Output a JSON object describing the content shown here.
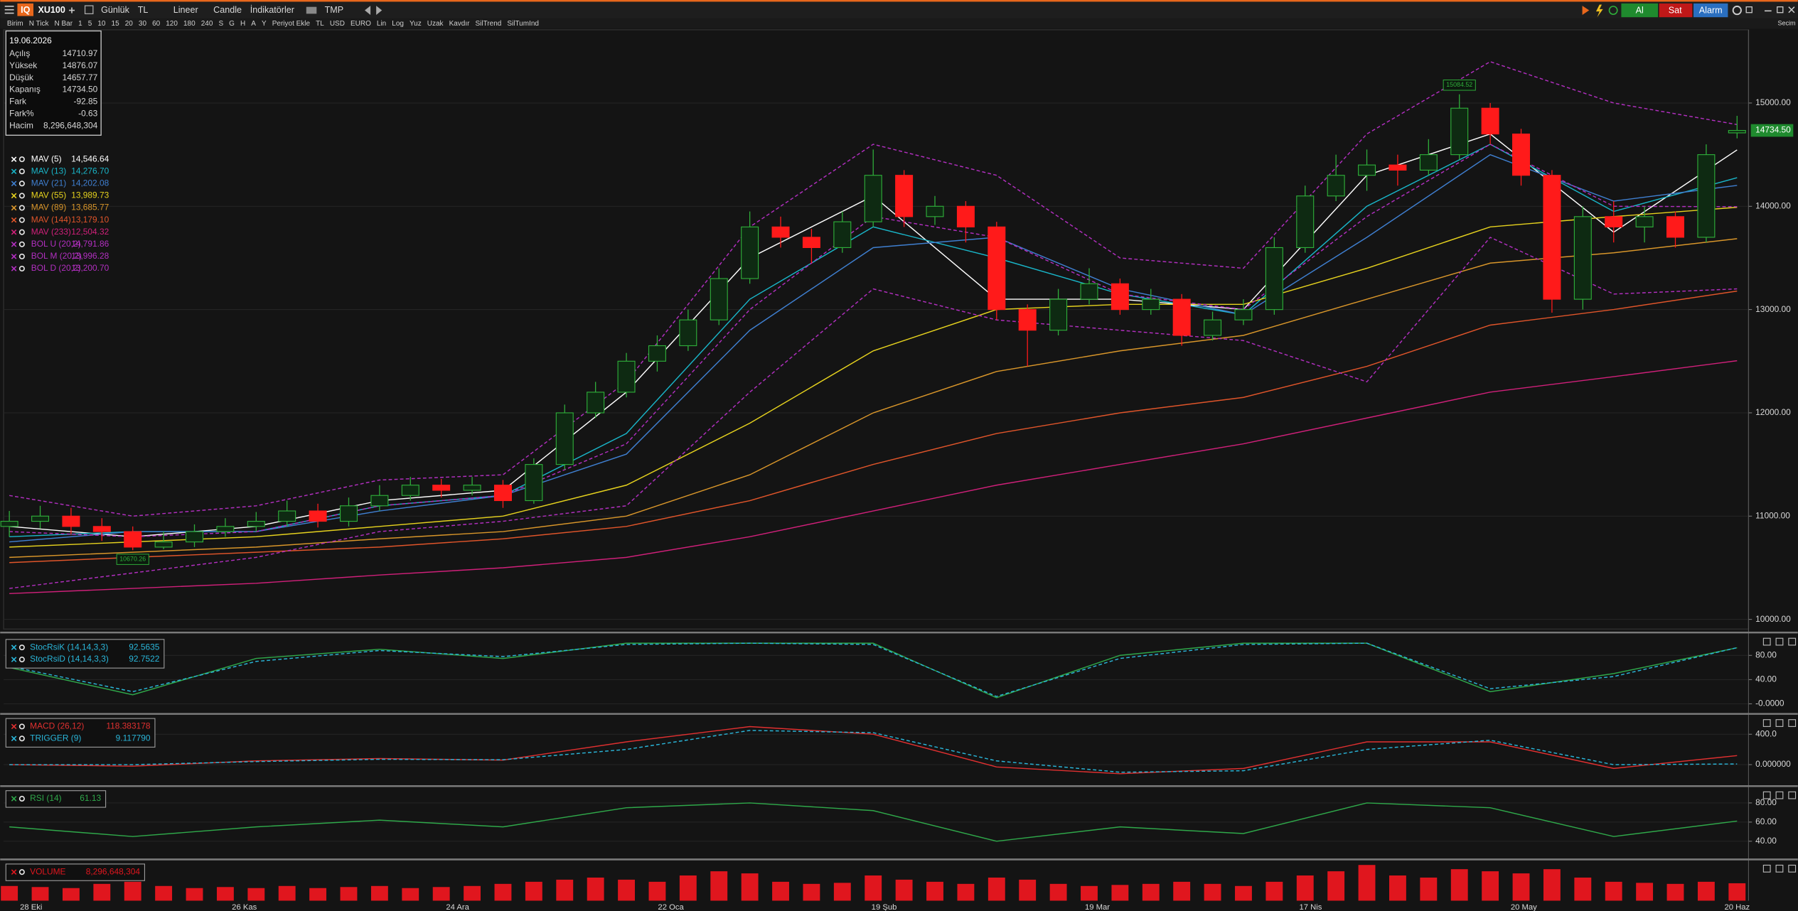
{
  "toolbar": {
    "logo": "IQ",
    "symbol": "XU100",
    "period": "Günlük",
    "currency": "TL",
    "scale": "Lineer",
    "style": "Candle",
    "indicators": "İndikatörler",
    "template": "TMP",
    "buy": "Al",
    "sell": "Sat",
    "alarm": "Alarm",
    "corner": "Secim"
  },
  "subtoolbar": [
    "Birim",
    "N Tick",
    "N Bar",
    "1",
    "5",
    "10",
    "15",
    "20",
    "30",
    "60",
    "120",
    "180",
    "240",
    "S",
    "G",
    "H",
    "A",
    "Y",
    "Periyot Ekle",
    "TL",
    "USD",
    "EURO",
    "Lin",
    "Log",
    "Yuz",
    "Uzak",
    "Kavdır",
    "SilTrend",
    "SilTumInd"
  ],
  "info_box": {
    "date": "19.06.2026",
    "rows": [
      {
        "label": "Açılış",
        "value": "14710.97"
      },
      {
        "label": "Yüksek",
        "value": "14876.07"
      },
      {
        "label": "Düşük",
        "value": "14657.77"
      },
      {
        "label": "Kapanış",
        "value": "14734.50"
      },
      {
        "label": "Fark",
        "value": "-92.85"
      },
      {
        "label": "Fark%",
        "value": "-0.63"
      },
      {
        "label": "Hacim",
        "value": "8,296,648,304"
      }
    ]
  },
  "chart_data": [
    {
      "type": "candlestick",
      "up_color": "#2fae3a",
      "down_color": "#ff1a1a",
      "grid": true,
      "x_labels": [
        "28 Eki",
        "26 Kas",
        "24 Ara",
        "22 Oca",
        "19 Şub",
        "19 Mar",
        "17 Nis",
        "20 May",
        "20 Haz"
      ],
      "open": [
        10900,
        10950,
        11000,
        10900,
        10850,
        10700,
        10750,
        10850,
        10900,
        10950,
        11050,
        10950,
        11100,
        11200,
        11300,
        11250,
        11300,
        11150,
        11500,
        12000,
        12200,
        12500,
        12650,
        12900,
        13300,
        13800,
        13700,
        13600,
        13850,
        14300,
        13900,
        14000,
        13800,
        13000,
        12800,
        13100,
        13250,
        13000,
        13100,
        12750,
        12900,
        13000,
        13600,
        14100,
        14300,
        14400,
        14350,
        14500,
        14950,
        14700,
        14300,
        13100,
        13900,
        13800,
        13900,
        13700,
        14710.97
      ],
      "high": [
        11050,
        11100,
        11080,
        10980,
        10900,
        10850,
        10920,
        10980,
        11040,
        11150,
        11120,
        11180,
        11300,
        11380,
        11360,
        11380,
        11350,
        11560,
        12080,
        12300,
        12580,
        12750,
        13000,
        13400,
        13950,
        13900,
        13780,
        13950,
        14550,
        14350,
        14100,
        14050,
        13850,
        13050,
        13200,
        13400,
        13300,
        13200,
        13150,
        12980,
        13100,
        13700,
        14200,
        14500,
        14550,
        14500,
        14650,
        15084.52,
        15000,
        14750,
        14350,
        14000,
        14050,
        14000,
        13950,
        14600,
        14876.07
      ],
      "low": [
        10800,
        10880,
        10820,
        10760,
        10670.26,
        10680,
        10700,
        10800,
        10850,
        10900,
        10890,
        10900,
        11050,
        11150,
        11180,
        11200,
        11080,
        11120,
        11450,
        11950,
        12150,
        12400,
        12600,
        12850,
        13250,
        13600,
        13450,
        13550,
        13800,
        13800,
        13820,
        13650,
        12900,
        12450,
        12750,
        13050,
        12950,
        12950,
        12650,
        12700,
        12850,
        12950,
        13550,
        14050,
        14150,
        14200,
        14300,
        14450,
        14600,
        14200,
        12970,
        13000,
        13650,
        13650,
        13600,
        13650,
        14657.77
      ],
      "close": [
        10950,
        11000,
        10900,
        10850,
        10700,
        10750,
        10850,
        10900,
        10950,
        11050,
        10950,
        11100,
        11200,
        11300,
        11250,
        11300,
        11150,
        11500,
        12000,
        12200,
        12500,
        12650,
        12900,
        13300,
        13800,
        13700,
        13600,
        13850,
        14300,
        13900,
        14000,
        13800,
        13000,
        12800,
        13100,
        13250,
        13000,
        13100,
        12750,
        12900,
        13000,
        13600,
        14100,
        14300,
        14400,
        14350,
        14500,
        14950,
        14700,
        14300,
        13100,
        13900,
        13800,
        13900,
        13700,
        14500,
        14734.5
      ],
      "ylim": [
        9917,
        15709
      ],
      "yticks": [
        {
          "value": 15000,
          "label": "15000.00"
        },
        {
          "value": 14000,
          "label": "14000.00"
        },
        {
          "value": 13000,
          "label": "13000.00"
        },
        {
          "value": 12000,
          "label": "12000.00"
        },
        {
          "value": 11000,
          "label": "11000.00"
        },
        {
          "value": 10000,
          "label": "10000.00"
        }
      ],
      "last_price_label": "14734.50",
      "annotations": {
        "max": "15084.52",
        "min": "10670.26"
      },
      "series": [
        {
          "name": "MAV (5)",
          "legend_value": "14,546.64",
          "color": "#ffffff",
          "values": [
            10900,
            10800,
            10900,
            11150,
            11250,
            12200,
            13500,
            14100,
            13100,
            13100,
            13000,
            14300,
            14700,
            13750,
            14546.64
          ]
        },
        {
          "name": "MAV (13)",
          "legend_value": "14,276.70",
          "color": "#19b5c8",
          "values": [
            10800,
            10850,
            10850,
            11100,
            11200,
            11800,
            13100,
            13800,
            13500,
            13150,
            12950,
            14000,
            14600,
            13950,
            14276.7
          ]
        },
        {
          "name": "MAV (21)",
          "legend_value": "14,202.08",
          "color": "#3f7fd0",
          "values": [
            10750,
            10850,
            10850,
            11050,
            11200,
            11600,
            12800,
            13600,
            13700,
            13200,
            12950,
            13700,
            14500,
            14050,
            14202.08
          ]
        },
        {
          "name": "MAV (55)",
          "legend_value": "13,989.73",
          "color": "#e6d21e",
          "values": [
            10700,
            10750,
            10800,
            10900,
            11000,
            11300,
            11900,
            12600,
            13000,
            13050,
            13050,
            13400,
            13800,
            13900,
            13989.73
          ]
        },
        {
          "name": "MAV (89)",
          "legend_value": "13,685.77",
          "color": "#d9962a",
          "values": [
            10600,
            10650,
            10700,
            10780,
            10850,
            11000,
            11400,
            12000,
            12400,
            12600,
            12750,
            13100,
            13450,
            13550,
            13685.77
          ]
        },
        {
          "name": "MAV (144)",
          "legend_value": "13,179.10",
          "color": "#e0552a",
          "values": [
            10550,
            10600,
            10650,
            10700,
            10780,
            10900,
            11150,
            11500,
            11800,
            12000,
            12150,
            12450,
            12850,
            13000,
            13179.1
          ]
        },
        {
          "name": "MAV (233)",
          "legend_value": "12,504.32",
          "color": "#d0207a",
          "values": [
            10250,
            10300,
            10350,
            10430,
            10500,
            10600,
            10800,
            11050,
            11300,
            11500,
            11700,
            11950,
            12200,
            12350,
            12504.32
          ]
        },
        {
          "name": "BOL U (20,2)",
          "legend_value": "14,791.86",
          "color": "#b22fc0",
          "dashed": true,
          "values": [
            11200,
            11000,
            11100,
            11350,
            11400,
            12300,
            13800,
            14600,
            14300,
            13500,
            13400,
            14700,
            15400,
            15000,
            14791.86
          ]
        },
        {
          "name": "BOL M (20,2)",
          "legend_value": "13,996.28",
          "color": "#b22fc0",
          "dashed": true,
          "values": [
            10850,
            10800,
            10850,
            11100,
            11200,
            11700,
            13000,
            13900,
            13700,
            13150,
            13000,
            13900,
            14600,
            14000,
            13996.28
          ]
        },
        {
          "name": "BOL D (20,2)",
          "legend_value": "13,200.70",
          "color": "#b22fc0",
          "dashed": true,
          "values": [
            10300,
            10450,
            10600,
            10850,
            10950,
            11100,
            12200,
            13200,
            12900,
            12800,
            12700,
            12300,
            13700,
            13150,
            13200.7
          ]
        }
      ]
    },
    {
      "type": "line",
      "ylim": [
        -11,
        112
      ],
      "yticks": [
        {
          "value": 80,
          "label": "80.00"
        },
        {
          "value": 40,
          "label": "40.00"
        },
        {
          "value": 0,
          "label": "-0.0000"
        }
      ],
      "series": [
        {
          "name": "StocRsiK (14,14,3,3)",
          "legend_value": "92.5635",
          "color": "#2fa84a",
          "values": [
            60,
            15,
            75,
            90,
            75,
            100,
            100,
            100,
            10,
            80,
            100,
            100,
            20,
            50,
            92.5635
          ]
        },
        {
          "name": "StocRsiD (14,14,3,3)",
          "legend_value": "92.7522",
          "color": "#2ab5d8",
          "dashed": true,
          "values": [
            62,
            20,
            70,
            88,
            78,
            98,
            100,
            98,
            12,
            75,
            98,
            100,
            25,
            45,
            92.7522
          ]
        }
      ]
    },
    {
      "type": "line",
      "ylim": [
        -222,
        622
      ],
      "yticks": [
        {
          "value": 400,
          "label": "400.0"
        },
        {
          "value": 0,
          "label": "0.000000"
        }
      ],
      "series": [
        {
          "name": "MACD (26,12)",
          "legend_value": "118.383178",
          "color": "#e03030",
          "values": [
            0,
            -20,
            50,
            80,
            60,
            300,
            500,
            400,
            -30,
            -120,
            -50,
            300,
            300,
            -50,
            118.383178
          ]
        },
        {
          "name": "TRIGGER (9)",
          "legend_value": "9.117790",
          "color": "#2ab5d8",
          "dashed": true,
          "values": [
            0,
            0,
            40,
            70,
            65,
            200,
            450,
            420,
            50,
            -100,
            -80,
            200,
            320,
            0,
            9.11779
          ]
        }
      ]
    },
    {
      "type": "line",
      "ylim": [
        27,
        94
      ],
      "yticks": [
        {
          "value": 80,
          "label": "80.00"
        },
        {
          "value": 60,
          "label": "60.00"
        },
        {
          "value": 40,
          "label": "40.00"
        }
      ],
      "series": [
        {
          "name": "RSI (14)",
          "legend_value": "61.13",
          "color": "#2fa84a",
          "values": [
            55,
            45,
            55,
            62,
            55,
            75,
            80,
            72,
            40,
            55,
            48,
            80,
            75,
            45,
            61.13
          ]
        }
      ]
    },
    {
      "type": "bar",
      "ylim": [
        0,
        18000000000
      ],
      "series": [
        {
          "name": "VOLUME",
          "legend_value": "8,296,648,304",
          "color": "#e0161e",
          "values": [
            7000000000.0,
            6500000000.0,
            6000000000.0,
            8000000000.0,
            9000000000.0,
            7000000000.0,
            6000000000.0,
            6500000000.0,
            6000000000.0,
            7000000000.0,
            6000000000.0,
            6500000000.0,
            7000000000.0,
            6000000000.0,
            6500000000.0,
            7000000000.0,
            8000000000.0,
            9000000000.0,
            10000000000.0,
            11000000000.0,
            10000000000.0,
            9000000000.0,
            12000000000.0,
            14000000000.0,
            13000000000.0,
            9000000000.0,
            8000000000.0,
            8500000000.0,
            12000000000.0,
            10000000000.0,
            9000000000.0,
            8000000000.0,
            11000000000.0,
            10000000000.0,
            8000000000.0,
            7000000000.0,
            7500000000.0,
            8000000000.0,
            9000000000.0,
            8000000000.0,
            7000000000.0,
            9000000000.0,
            12000000000.0,
            14000000000.0,
            17000000000.0,
            12000000000.0,
            11000000000.0,
            15000000000.0,
            14000000000.0,
            13000000000.0,
            15000000000.0,
            11000000000.0,
            9000000000.0,
            8500000000.0,
            8000000000.0,
            9000000000.0,
            8296648304
          ]
        }
      ]
    }
  ]
}
